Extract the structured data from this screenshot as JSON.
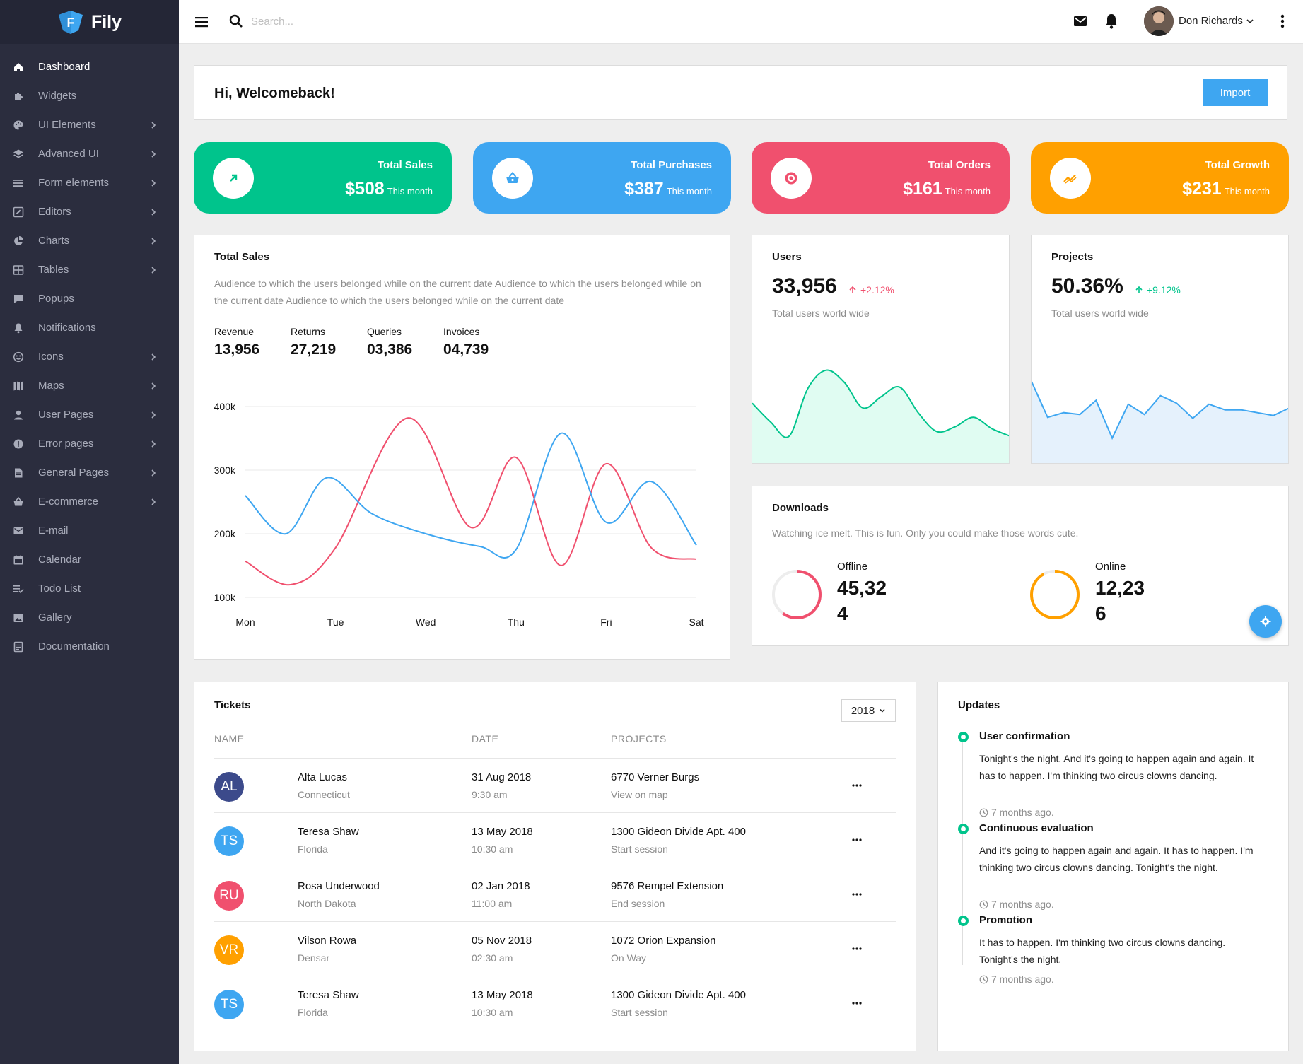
{
  "brand": {
    "name": "Fily",
    "logo_letter": "F"
  },
  "sidebar": {
    "items": [
      {
        "label": "Dashboard",
        "icon": "home-icon",
        "has_children": false,
        "active": true
      },
      {
        "label": "Widgets",
        "icon": "puzzle-icon",
        "has_children": false
      },
      {
        "label": "UI Elements",
        "icon": "palette-icon",
        "has_children": true
      },
      {
        "label": "Advanced UI",
        "icon": "layers-icon",
        "has_children": true
      },
      {
        "label": "Form elements",
        "icon": "list-icon",
        "has_children": true
      },
      {
        "label": "Editors",
        "icon": "edit-icon",
        "has_children": true
      },
      {
        "label": "Charts",
        "icon": "pie-chart-icon",
        "has_children": true
      },
      {
        "label": "Tables",
        "icon": "table-icon",
        "has_children": true
      },
      {
        "label": "Popups",
        "icon": "message-icon",
        "has_children": false
      },
      {
        "label": "Notifications",
        "icon": "bell-icon",
        "has_children": false
      },
      {
        "label": "Icons",
        "icon": "smiley-icon",
        "has_children": true
      },
      {
        "label": "Maps",
        "icon": "map-icon",
        "has_children": true
      },
      {
        "label": "User Pages",
        "icon": "user-icon",
        "has_children": true
      },
      {
        "label": "Error pages",
        "icon": "alert-icon",
        "has_children": true
      },
      {
        "label": "General Pages",
        "icon": "file-icon",
        "has_children": true
      },
      {
        "label": "E-commerce",
        "icon": "basket-icon",
        "has_children": true
      },
      {
        "label": "E-mail",
        "icon": "mail-icon",
        "has_children": false
      },
      {
        "label": "Calendar",
        "icon": "calendar-icon",
        "has_children": false
      },
      {
        "label": "Todo List",
        "icon": "checklist-icon",
        "has_children": false
      },
      {
        "label": "Gallery",
        "icon": "image-icon",
        "has_children": false
      },
      {
        "label": "Documentation",
        "icon": "document-icon",
        "has_children": false
      }
    ]
  },
  "topbar": {
    "search_placeholder": "Search...",
    "user_name": "Don Richards"
  },
  "welcome": {
    "title": "Hi, Welcomeback!",
    "import_label": "Import"
  },
  "stats": [
    {
      "label": "Total Sales",
      "value": "$508",
      "period": "This month",
      "color": "#00c48c",
      "icon": "trending-up-icon"
    },
    {
      "label": "Total Purchases",
      "value": "$387",
      "period": "This month",
      "color": "#3ea6f1",
      "icon": "basket-icon"
    },
    {
      "label": "Total Orders",
      "value": "$161",
      "period": "This month",
      "color": "#f0506e",
      "icon": "target-icon"
    },
    {
      "label": "Total Growth",
      "value": "$231",
      "period": "This month",
      "color": "#ffa000",
      "icon": "growth-icon"
    }
  ],
  "sales": {
    "title": "Total Sales",
    "description": "Audience to which the users belonged while on the current date Audience to which the users belonged while on the current date Audience to which the users belonged while on the current date",
    "metrics": [
      {
        "label": "Revenue",
        "value": "13,956"
      },
      {
        "label": "Returns",
        "value": "27,219"
      },
      {
        "label": "Queries",
        "value": "03,386"
      },
      {
        "label": "Invoices",
        "value": "04,739"
      }
    ]
  },
  "chart_data": [
    {
      "type": "line",
      "title": "",
      "x": [
        "Mon",
        "Tue",
        "Wed",
        "Thu",
        "Fri",
        "Sat"
      ],
      "yticks": [
        "100k",
        "200k",
        "300k",
        "400k"
      ],
      "ylim": [
        100000,
        400000
      ],
      "grid": true,
      "series": [
        {
          "color": "#f0506e",
          "points": [
            [
              0,
              157000
            ],
            [
              0.5,
              120000
            ],
            [
              1,
              178000
            ],
            [
              1.8,
              382000
            ],
            [
              2.5,
              210000
            ],
            [
              3,
              320000
            ],
            [
              3.5,
              150000
            ],
            [
              4,
              310000
            ],
            [
              4.5,
              178000
            ],
            [
              5,
              160000
            ]
          ]
        },
        {
          "color": "#3ea6f1",
          "points": [
            [
              0,
              260000
            ],
            [
              0.45,
              200000
            ],
            [
              0.9,
              288000
            ],
            [
              1.4,
              232000
            ],
            [
              2,
              200000
            ],
            [
              2.6,
              180000
            ],
            [
              3,
              175000
            ],
            [
              3.5,
              358000
            ],
            [
              4,
              218000
            ],
            [
              4.5,
              282000
            ],
            [
              5,
              182000
            ]
          ]
        }
      ]
    },
    {
      "type": "area",
      "title": "",
      "values": [
        65,
        45,
        30,
        80,
        100,
        87,
        60,
        72,
        82,
        55,
        35,
        40,
        50,
        38,
        30
      ],
      "ylim": [
        0,
        120
      ],
      "color": "#00c48c",
      "fill": "#e0fcf2"
    },
    {
      "type": "area",
      "title": "",
      "values": [
        88,
        50,
        55,
        53,
        68,
        28,
        64,
        53,
        73,
        65,
        49,
        64,
        58,
        58,
        55,
        52,
        60
      ],
      "ylim": [
        0,
        120
      ],
      "color": "#3ea6f1",
      "fill": "#e5f1fc"
    }
  ],
  "users": {
    "title": "Users",
    "value": "33,956",
    "delta": "+2.12%",
    "delta_color": "#f0506e",
    "subtitle": "Total users world wide"
  },
  "projects": {
    "title": "Projects",
    "value": "50.36%",
    "delta": "+9.12%",
    "delta_color": "#00c48c",
    "subtitle": "Total users world wide"
  },
  "downloads": {
    "title": "Downloads",
    "description": "Watching ice melt. This is fun. Only you could make those words cute.",
    "offline": {
      "label": "Offline",
      "value": "45,324",
      "ring_fraction": 0.6,
      "color": "#f0506e"
    },
    "online": {
      "label": "Online",
      "value": "12,236",
      "ring_fraction": 0.92,
      "color": "#ffa000"
    }
  },
  "tickets": {
    "title": "Tickets",
    "year": "2018",
    "columns": [
      "NAME",
      "DATE",
      "PROJECTS"
    ],
    "rows": [
      {
        "initials": "AL",
        "color": "#3c4a8b",
        "name": "Alta Lucas",
        "location": "Connecticut",
        "date": "31 Aug 2018",
        "time": "9:30 am",
        "project": "6770 Verner Burgs",
        "project_sub": "View on map"
      },
      {
        "initials": "TS",
        "color": "#3ea6f1",
        "name": "Teresa Shaw",
        "location": "Florida",
        "date": "13 May 2018",
        "time": "10:30 am",
        "project": "1300 Gideon Divide Apt. 400",
        "project_sub": "Start session"
      },
      {
        "initials": "RU",
        "color": "#f0506e",
        "name": "Rosa Underwood",
        "location": "North Dakota",
        "date": "02 Jan 2018",
        "time": "11:00 am",
        "project": "9576 Rempel Extension",
        "project_sub": "End session"
      },
      {
        "initials": "VR",
        "color": "#ffa000",
        "name": "Vilson Rowa",
        "location": "Densar",
        "date": "05 Nov 2018",
        "time": "02:30 am",
        "project": "1072 Orion Expansion",
        "project_sub": "On Way"
      },
      {
        "initials": "TS",
        "color": "#3ea6f1",
        "name": "Teresa Shaw",
        "location": "Florida",
        "date": "13 May 2018",
        "time": "10:30 am",
        "project": "1300 Gideon Divide Apt. 400",
        "project_sub": "Start session"
      }
    ]
  },
  "updates": {
    "title": "Updates",
    "items": [
      {
        "title": "User confirmation",
        "body": "Tonight's the night. And it's going to happen again and again. It has to happen. I'm thinking two circus clowns dancing.",
        "time": "7 months ago."
      },
      {
        "title": "Continuous evaluation",
        "body": "And it's going to happen again and again. It has to happen. I'm thinking two circus clowns dancing. Tonight's the night.",
        "time": "7 months ago."
      },
      {
        "title": "Promotion",
        "body": "It has to happen. I'm thinking two circus clowns dancing. Tonight's the night.",
        "time": "7 months ago."
      }
    ]
  }
}
